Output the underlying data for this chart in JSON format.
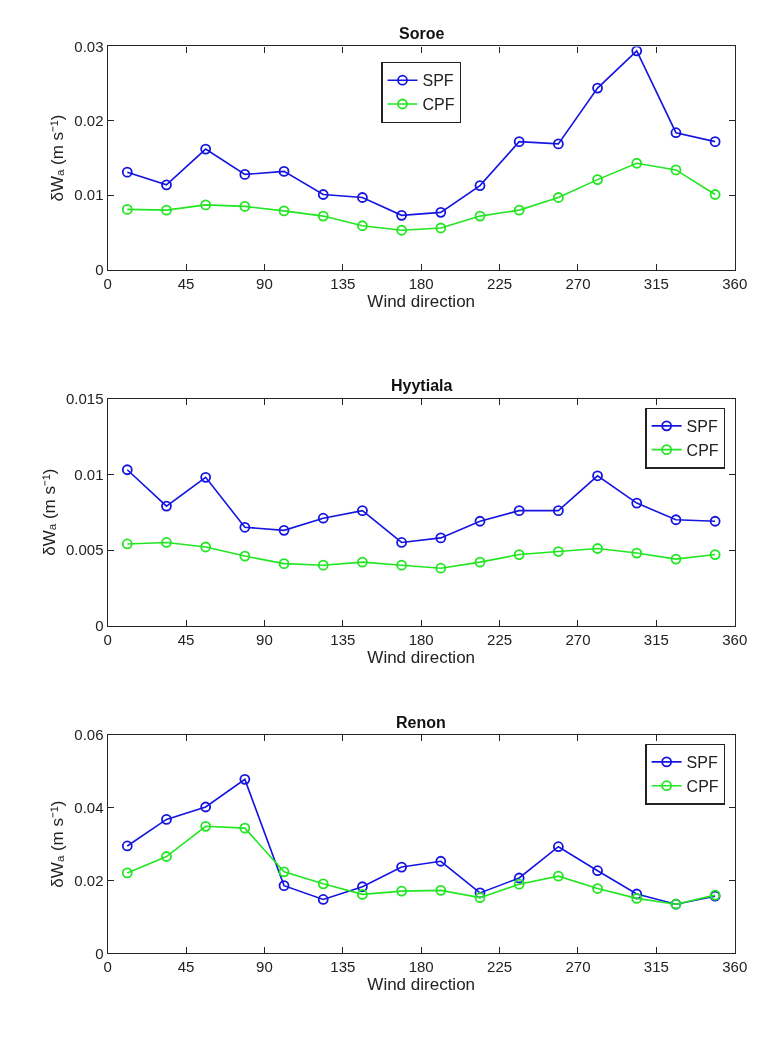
{
  "chart_data": [
    {
      "type": "line",
      "title": "Soroe",
      "xlabel": "Wind direction",
      "ylabel": "δWₐ (m s⁻¹)",
      "x": [
        11.25,
        33.75,
        56.25,
        78.75,
        101.25,
        123.75,
        146.25,
        168.75,
        191.25,
        213.75,
        236.25,
        258.75,
        281.25,
        303.75,
        326.25,
        348.75
      ],
      "xlim": [
        0,
        360
      ],
      "xticks": [
        0,
        45,
        90,
        135,
        180,
        225,
        270,
        315,
        360
      ],
      "ylim": [
        0,
        0.03
      ],
      "yticks": [
        0,
        0.01,
        0.02,
        0.03
      ],
      "marker": "circle",
      "line_style": "solid",
      "legend": "top",
      "series": [
        {
          "name": "SPF",
          "color": "#1515e0",
          "values": [
            0.0131,
            0.0114,
            0.0162,
            0.0128,
            0.0132,
            0.0101,
            0.0097,
            0.0073,
            0.0077,
            0.0113,
            0.0172,
            0.0169,
            0.0244,
            0.0294,
            0.0184,
            0.0172
          ]
        },
        {
          "name": "CPF",
          "color": "#22e622",
          "values": [
            0.0081,
            0.008,
            0.0087,
            0.0085,
            0.0079,
            0.0072,
            0.0059,
            0.0053,
            0.0056,
            0.0072,
            0.008,
            0.0097,
            0.0121,
            0.0143,
            0.0134,
            0.0101
          ]
        }
      ]
    },
    {
      "type": "line",
      "title": "Hyytiala",
      "xlabel": "Wind direction",
      "ylabel": "δWₐ (m s⁻¹)",
      "x": [
        11.25,
        33.75,
        56.25,
        78.75,
        101.25,
        123.75,
        146.25,
        168.75,
        191.25,
        213.75,
        236.25,
        258.75,
        281.25,
        303.75,
        326.25,
        348.75
      ],
      "xlim": [
        0,
        360
      ],
      "xticks": [
        0,
        45,
        90,
        135,
        180,
        225,
        270,
        315,
        360
      ],
      "ylim": [
        0,
        0.015
      ],
      "yticks": [
        0,
        0.005,
        0.01,
        0.015
      ],
      "marker": "circle",
      "line_style": "solid",
      "legend": "top right",
      "series": [
        {
          "name": "SPF",
          "color": "#1515e0",
          "values": [
            0.0103,
            0.0079,
            0.0098,
            0.0065,
            0.0063,
            0.0071,
            0.0076,
            0.0055,
            0.0058,
            0.0069,
            0.0076,
            0.0076,
            0.0099,
            0.0081,
            0.007,
            0.0069
          ]
        },
        {
          "name": "CPF",
          "color": "#22e622",
          "values": [
            0.0054,
            0.0055,
            0.0052,
            0.0046,
            0.0041,
            0.004,
            0.0042,
            0.004,
            0.0038,
            0.0042,
            0.0047,
            0.0049,
            0.0051,
            0.0048,
            0.0044,
            0.0047
          ]
        }
      ]
    },
    {
      "type": "line",
      "title": "Renon",
      "xlabel": "Wind direction",
      "ylabel": "δWₐ (m s⁻¹)",
      "x": [
        11.25,
        33.75,
        56.25,
        78.75,
        101.25,
        123.75,
        146.25,
        168.75,
        191.25,
        213.75,
        236.25,
        258.75,
        281.25,
        303.75,
        326.25,
        348.75
      ],
      "xlim": [
        0,
        360
      ],
      "xticks": [
        0,
        45,
        90,
        135,
        180,
        225,
        270,
        315,
        360
      ],
      "ylim": [
        0,
        0.06
      ],
      "yticks": [
        0,
        0.02,
        0.04,
        0.06
      ],
      "marker": "circle",
      "line_style": "solid",
      "legend": "top right",
      "series": [
        {
          "name": "SPF",
          "color": "#1515e0",
          "values": [
            0.0295,
            0.0368,
            0.0402,
            0.0478,
            0.0186,
            0.0148,
            0.0183,
            0.0237,
            0.0253,
            0.0166,
            0.0207,
            0.0293,
            0.0227,
            0.0163,
            0.0135,
            0.0157
          ]
        },
        {
          "name": "CPF",
          "color": "#22e622",
          "values": [
            0.0221,
            0.0266,
            0.0349,
            0.0344,
            0.0224,
            0.0191,
            0.0162,
            0.0171,
            0.0173,
            0.0153,
            0.019,
            0.0212,
            0.0178,
            0.0151,
            0.0135,
            0.016
          ]
        }
      ]
    }
  ]
}
